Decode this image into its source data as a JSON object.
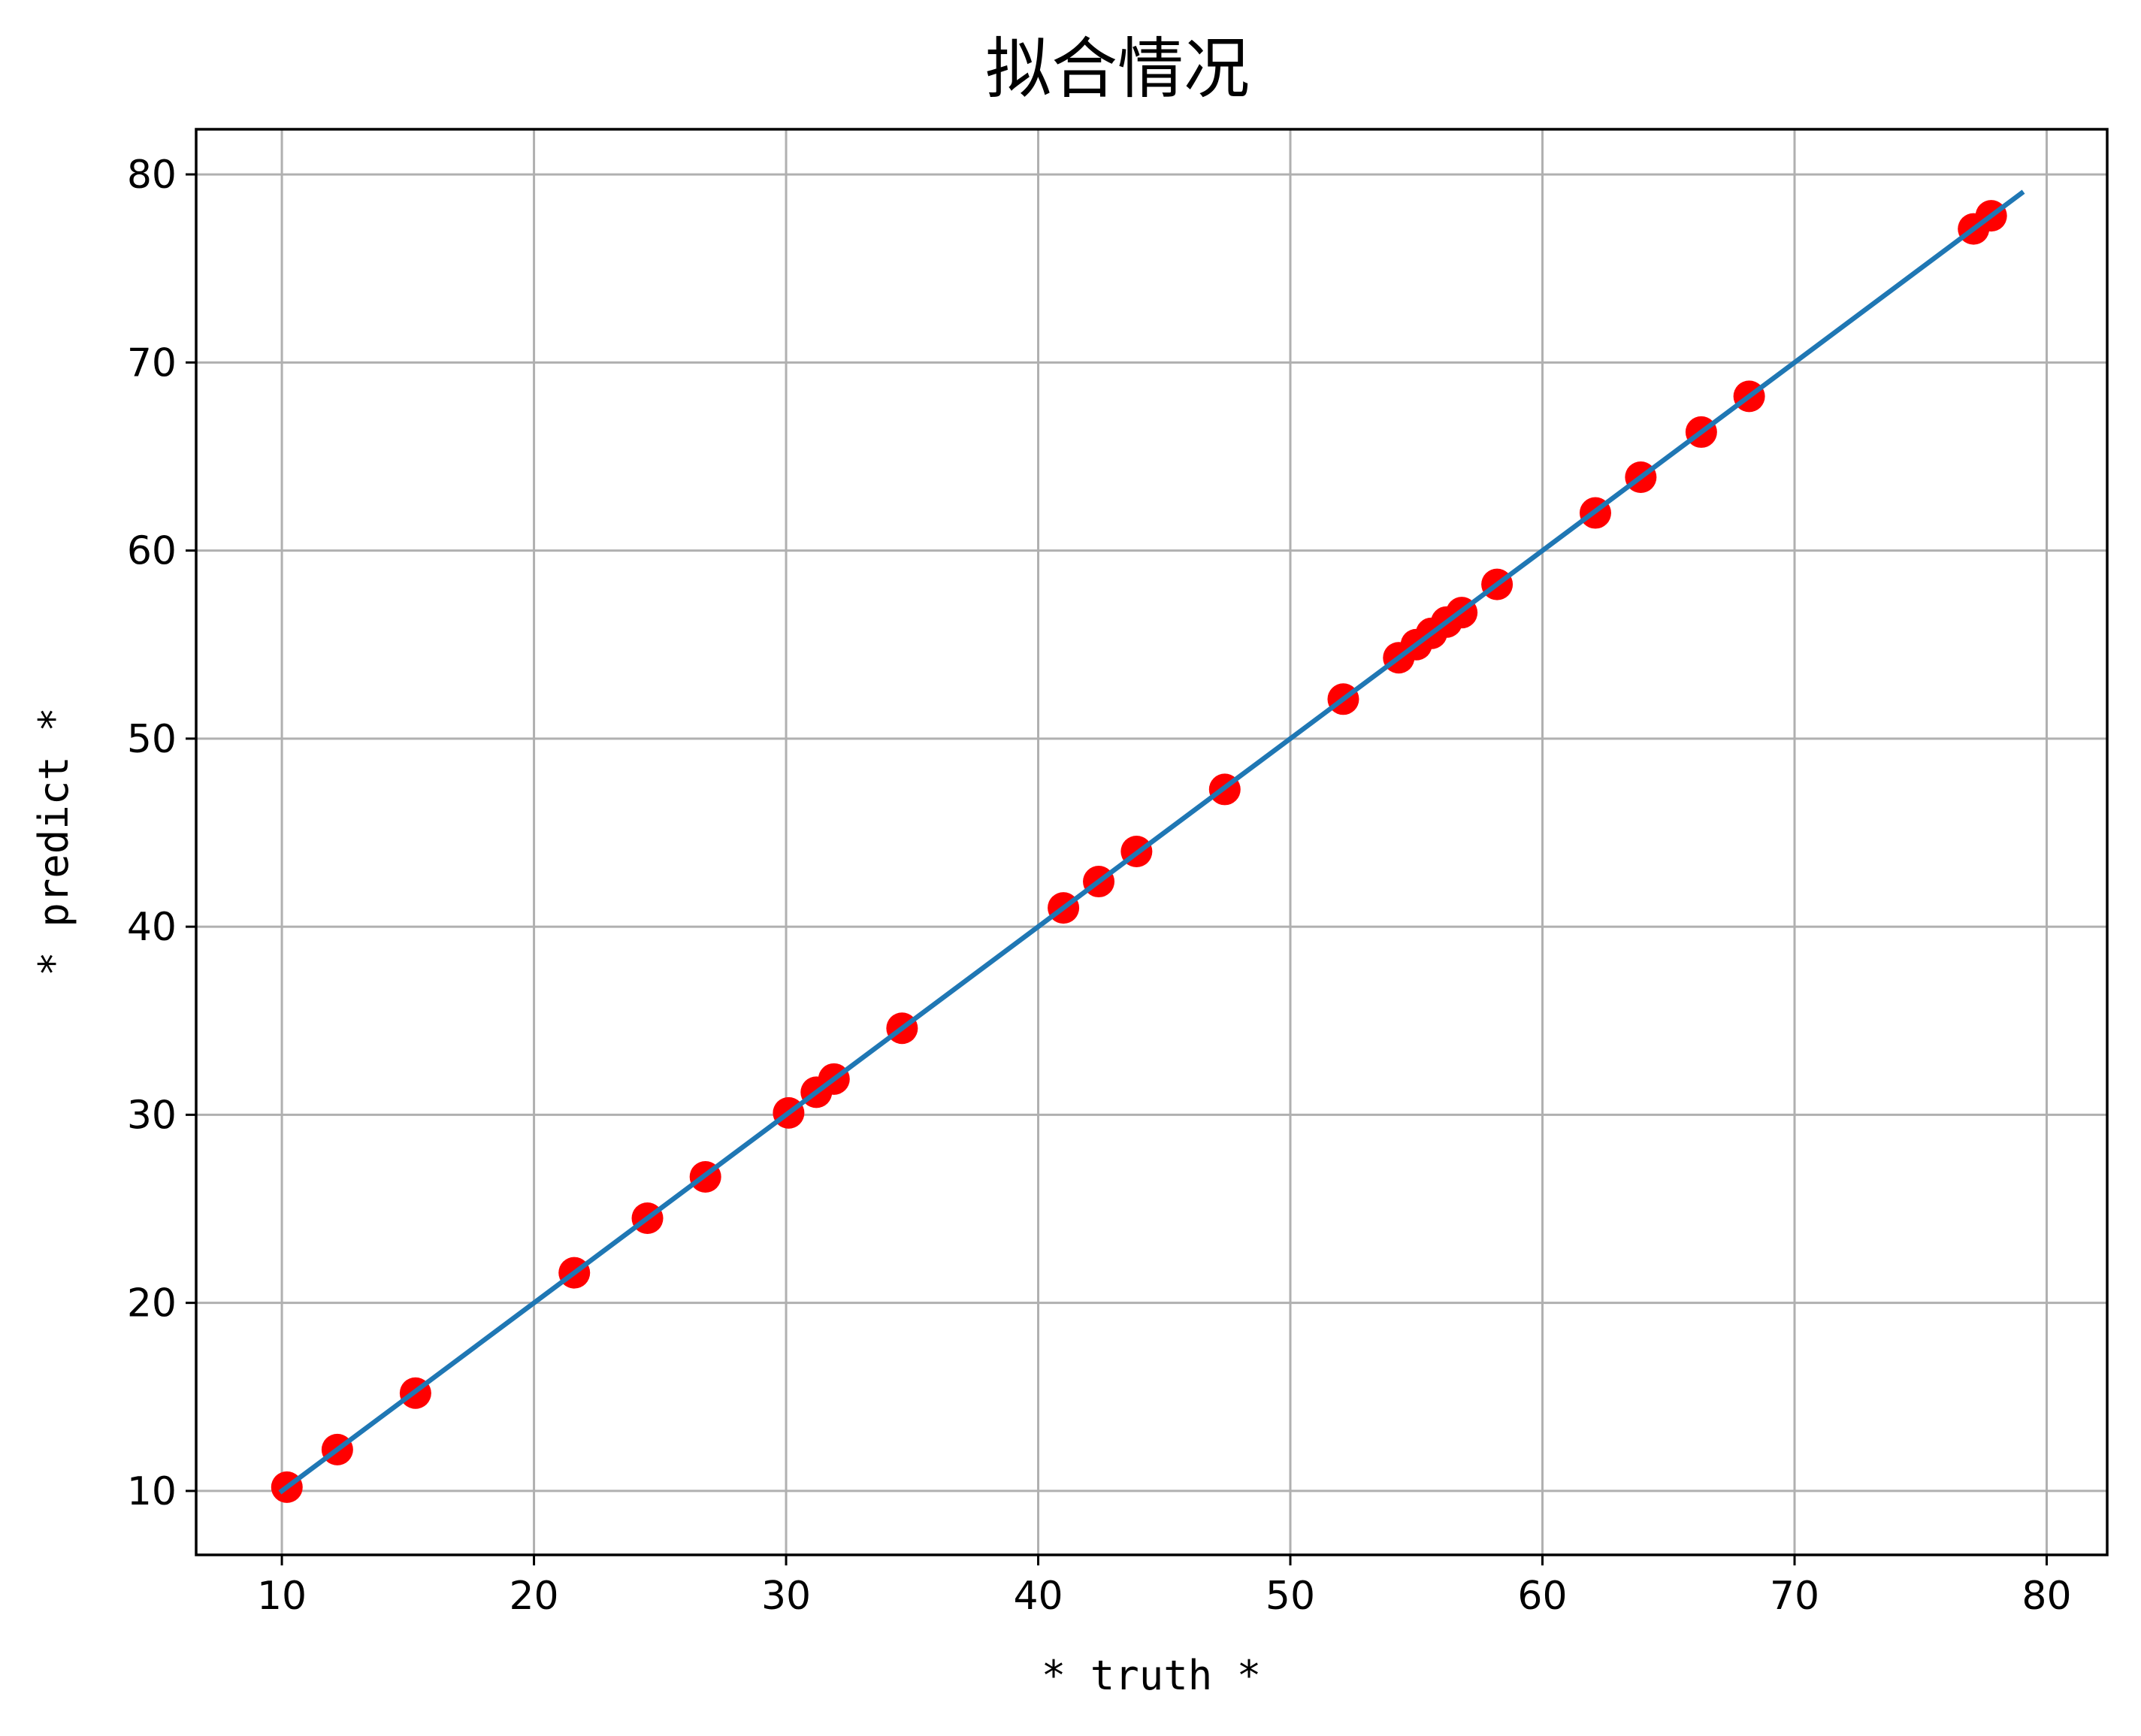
{
  "chart_data": {
    "type": "scatter",
    "title": "拟合情况",
    "xlabel": "* truth *",
    "ylabel": "* predict *",
    "xlim": [
      6.6,
      82.4
    ],
    "ylim": [
      6.6,
      82.4
    ],
    "xticks": [
      10,
      20,
      30,
      40,
      50,
      60,
      70,
      80
    ],
    "yticks": [
      10,
      20,
      30,
      40,
      50,
      60,
      70,
      80
    ],
    "grid": true,
    "colors": {
      "points": "#ff0000",
      "line": "#1f77b4",
      "grid": "#b0b0b0"
    },
    "points": {
      "x": [
        10.2,
        12.2,
        15.3,
        21.6,
        24.5,
        26.8,
        30.1,
        31.2,
        31.9,
        34.6,
        41.0,
        42.4,
        43.9,
        47.4,
        52.1,
        54.3,
        55.0,
        55.6,
        56.2,
        56.8,
        58.2,
        62.1,
        63.9,
        66.3,
        68.2,
        77.1,
        77.8
      ],
      "y": [
        10.2,
        12.2,
        15.2,
        21.6,
        24.5,
        26.7,
        30.1,
        31.2,
        31.9,
        34.6,
        41.0,
        42.4,
        44.0,
        47.3,
        52.1,
        54.3,
        55.0,
        55.6,
        56.2,
        56.7,
        58.2,
        62.0,
        63.9,
        66.3,
        68.2,
        77.1,
        77.8
      ]
    },
    "line": {
      "x": [
        10.0,
        79.0
      ],
      "y": [
        10.0,
        79.0
      ]
    }
  }
}
